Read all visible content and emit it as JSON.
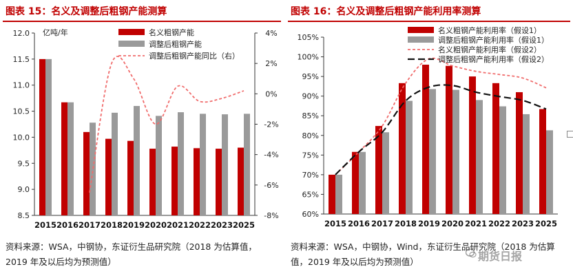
{
  "charts": [
    {
      "title": "图表 15：名义及调整后粗钢产能测算",
      "note": "资料来源：WSA，中钢协，东证衍生品研究院（2018 为估算值，2019 年及以后均为预测值）",
      "unit_label": "亿吨/年"
    },
    {
      "title": "图表 16：名义及调整后粗钢产能利用率测算",
      "note": "资料来源：WSA，中钢协，Wind，东证衍生品研究院（2018 为估算值，2019 年及以后均为预测值）"
    }
  ],
  "watermark": "期货日报",
  "colors": {
    "red": "#c00000",
    "gray": "#9a9a9a",
    "dashed_pink": "#f06b6b",
    "black_line": "#111111",
    "title": "#c00000"
  },
  "chart_data": [
    {
      "type": "bar",
      "categories": [
        "2015",
        "2016",
        "2017",
        "2018",
        "2019",
        "2020",
        "2021",
        "2022",
        "2023",
        "2025"
      ],
      "series": [
        {
          "name": "名义粗钢产能",
          "kind": "bar",
          "axis": "left",
          "color": "#c00000",
          "values": [
            11.5,
            10.67,
            10.1,
            9.97,
            9.93,
            9.78,
            9.82,
            9.79,
            9.78,
            9.8
          ]
        },
        {
          "name": "调整后粗钢产能",
          "kind": "bar",
          "axis": "left",
          "color": "#9a9a9a",
          "values": [
            11.5,
            10.67,
            10.28,
            10.47,
            10.6,
            10.41,
            10.48,
            10.45,
            10.44,
            10.45
          ]
        },
        {
          "name": "调整后粗钢产能同比（右）",
          "kind": "line",
          "axis": "right",
          "style": "dashed",
          "color": "#f06b6b",
          "values": [
            null,
            null,
            -6.5,
            2.0,
            1.0,
            -2.0,
            0.5,
            -0.5,
            -0.3,
            0.2
          ]
        }
      ],
      "ylim": [
        8.5,
        12.0
      ],
      "yticks": [
        "8.5",
        "9.0",
        "9.5",
        "10.0",
        "10.5",
        "11.0",
        "11.5",
        "12.0"
      ],
      "ylim_right": [
        -8,
        4
      ],
      "yticks_right": [
        "-8%",
        "-6%",
        "-4%",
        "-2%",
        "0%",
        "2%",
        "4%"
      ],
      "legend_position": "top-right"
    },
    {
      "type": "bar",
      "categories": [
        "2015",
        "2016",
        "2017",
        "2018",
        "2019",
        "2020",
        "2021",
        "2022",
        "2023",
        "2025"
      ],
      "series": [
        {
          "name": "名义粗钢产能利用率（假设1）",
          "kind": "bar",
          "color": "#c00000",
          "values": [
            70.0,
            75.8,
            82.4,
            93.3,
            98.0,
            97.7,
            95.0,
            93.3,
            91.0,
            86.7
          ]
        },
        {
          "name": "调整后粗钢产能利用率（假设1）",
          "kind": "bar",
          "color": "#9a9a9a",
          "values": [
            70.0,
            75.8,
            80.8,
            88.8,
            91.8,
            91.6,
            89.0,
            87.4,
            85.4,
            81.3
          ]
        },
        {
          "name": "名义粗钢产能利用率（假设2）",
          "kind": "line",
          "style": "dashed",
          "color": "#f06b6b",
          "values": [
            70.0,
            75.8,
            82.4,
            93.3,
            99.5,
            97.7,
            96.3,
            95.5,
            94.6,
            92.1
          ]
        },
        {
          "name": "调整后粗钢产能利用率（假设2）",
          "kind": "line",
          "style": "longdash",
          "color": "#111111",
          "values": [
            70.0,
            75.8,
            80.8,
            88.8,
            92.3,
            92.7,
            91.0,
            89.9,
            88.9,
            86.7
          ]
        }
      ],
      "ylim": [
        60,
        105
      ],
      "yticks": [
        "60%",
        "65%",
        "70%",
        "75%",
        "80%",
        "85%",
        "90%",
        "95%",
        "100%",
        "105%"
      ],
      "legend_position": "top-right"
    }
  ]
}
